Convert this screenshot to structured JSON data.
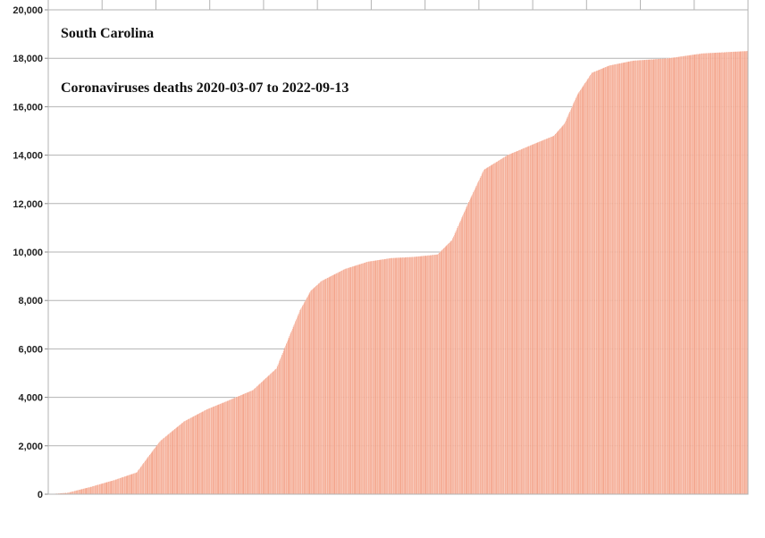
{
  "chart_data": {
    "type": "bar",
    "title": "South Carolina",
    "subtitle": "Coronaviruses deaths 2020-03-07 to 2022-09-13",
    "xlabel": "",
    "ylabel": "",
    "ylim": [
      0,
      20000
    ],
    "yticks": [
      "0",
      "2,000",
      "4,000",
      "6,000",
      "8,000",
      "10,000",
      "12,000",
      "14,000",
      "16,000",
      "18,000",
      "20,000"
    ],
    "grid": true,
    "legend": "none",
    "bar_color": "#f4a68d",
    "bar_stroke": "#ffffff",
    "x_start": "2020-03-07",
    "x_end": "2022-09-13",
    "cumulative_knots": [
      [
        "2020-03-07",
        0
      ],
      [
        "2020-04-01",
        60
      ],
      [
        "2020-05-01",
        300
      ],
      [
        "2020-06-01",
        580
      ],
      [
        "2020-07-01",
        900
      ],
      [
        "2020-07-15",
        1500
      ],
      [
        "2020-08-01",
        2200
      ],
      [
        "2020-09-01",
        3000
      ],
      [
        "2020-10-01",
        3500
      ],
      [
        "2020-11-01",
        3900
      ],
      [
        "2020-12-01",
        4300
      ],
      [
        "2021-01-01",
        5200
      ],
      [
        "2021-01-15",
        6300
      ],
      [
        "2021-02-01",
        7600
      ],
      [
        "2021-02-15",
        8400
      ],
      [
        "2021-03-01",
        8800
      ],
      [
        "2021-04-01",
        9300
      ],
      [
        "2021-05-01",
        9600
      ],
      [
        "2021-06-01",
        9750
      ],
      [
        "2021-07-01",
        9800
      ],
      [
        "2021-08-01",
        9900
      ],
      [
        "2021-08-20",
        10500
      ],
      [
        "2021-09-10",
        12000
      ],
      [
        "2021-10-01",
        13400
      ],
      [
        "2021-11-01",
        14000
      ],
      [
        "2021-12-01",
        14400
      ],
      [
        "2022-01-01",
        14800
      ],
      [
        "2022-01-15",
        15300
      ],
      [
        "2022-02-01",
        16500
      ],
      [
        "2022-02-20",
        17400
      ],
      [
        "2022-03-15",
        17700
      ],
      [
        "2022-04-15",
        17900
      ],
      [
        "2022-06-01",
        18000
      ],
      [
        "2022-07-15",
        18200
      ],
      [
        "2022-09-13",
        18300
      ]
    ]
  }
}
